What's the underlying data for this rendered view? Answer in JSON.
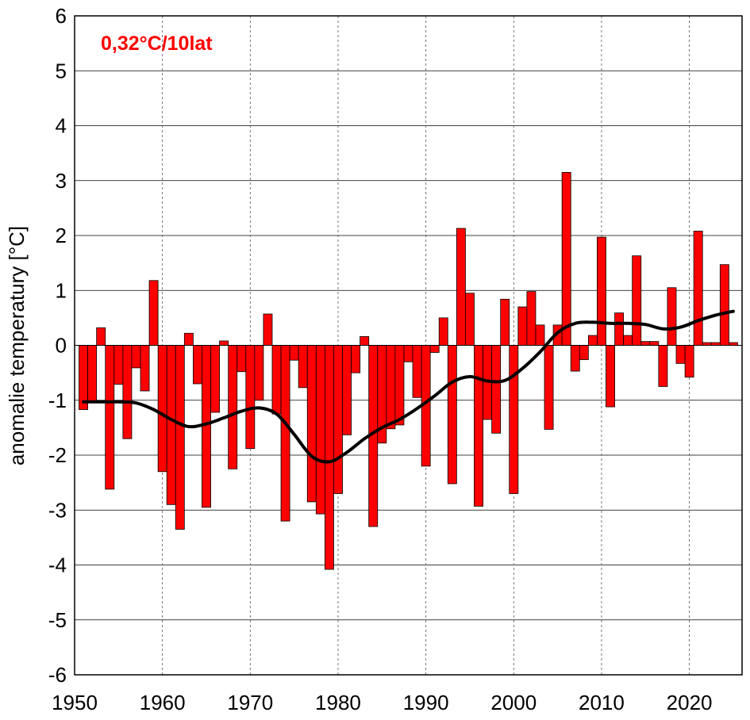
{
  "chart_data": {
    "type": "bar",
    "title": "",
    "xlabel": "",
    "ylabel": "anomalie temperatury [°C]",
    "annotation": "0,32°C/10lat",
    "xlim": [
      1950,
      2026
    ],
    "ylim": [
      -6,
      6
    ],
    "xticks": [
      1950,
      1960,
      1970,
      1980,
      1990,
      2000,
      2010,
      2020
    ],
    "yticks": [
      -6,
      -5,
      -4,
      -3,
      -2,
      -1,
      0,
      1,
      2,
      3,
      4,
      5,
      6
    ],
    "grid": {
      "horizontal": "solid",
      "vertical": "dashed"
    },
    "legend": "none",
    "colors": {
      "bars": "#ff0000",
      "bar_edge": "#000000",
      "smooth": "#000000",
      "annotation": "#ff0000"
    },
    "series": [
      {
        "type": "bar",
        "x": [
          1951,
          1952,
          1953,
          1954,
          1955,
          1956,
          1957,
          1958,
          1959,
          1960,
          1961,
          1962,
          1963,
          1964,
          1965,
          1966,
          1967,
          1968,
          1969,
          1970,
          1971,
          1972,
          1973,
          1974,
          1975,
          1976,
          1977,
          1978,
          1979,
          1980,
          1981,
          1982,
          1983,
          1984,
          1985,
          1986,
          1987,
          1988,
          1989,
          1990,
          1991,
          1992,
          1993,
          1994,
          1995,
          1996,
          1997,
          1998,
          1999,
          2000,
          2001,
          2002,
          2003,
          2004,
          2005,
          2006,
          2007,
          2008,
          2009,
          2010,
          2011,
          2012,
          2013,
          2014,
          2015,
          2016,
          2017,
          2018,
          2019,
          2020,
          2021,
          2022,
          2023,
          2024,
          2025
        ],
        "values": [
          -1.17,
          -1.02,
          0.32,
          -2.62,
          -0.71,
          -1.7,
          -0.41,
          -0.83,
          1.18,
          -2.3,
          -2.9,
          -3.35,
          0.22,
          -0.7,
          -2.95,
          -1.22,
          0.08,
          -2.25,
          -0.48,
          -1.88,
          -1.0,
          0.57,
          -1.25,
          -3.2,
          -0.27,
          -0.77,
          -2.85,
          -3.07,
          -4.08,
          -2.7,
          -1.63,
          -0.5,
          0.16,
          -3.3,
          -1.78,
          -1.52,
          -1.45,
          -0.3,
          -0.95,
          -2.2,
          -0.13,
          0.5,
          -2.52,
          2.13,
          0.95,
          -2.93,
          -1.35,
          -1.6,
          0.84,
          -2.7,
          0.7,
          0.98,
          0.37,
          -1.53,
          0.37,
          3.15,
          -0.47,
          -0.26,
          0.18,
          1.97,
          -1.12,
          0.59,
          0.18,
          1.63,
          0.07,
          0.07,
          -0.75,
          1.05,
          -0.33,
          -0.58,
          2.08,
          0.05,
          0.05,
          1.47,
          0.05
        ]
      },
      {
        "type": "line",
        "name": "",
        "x": [
          1951,
          1953,
          1955,
          1957,
          1959,
          1961,
          1963,
          1965,
          1967,
          1969,
          1971,
          1973,
          1975,
          1977,
          1979,
          1981,
          1983,
          1985,
          1987,
          1989,
          1991,
          1993,
          1995,
          1997,
          1999,
          2001,
          2003,
          2005,
          2007,
          2009,
          2011,
          2013,
          2015,
          2017,
          2019,
          2021,
          2023,
          2025
        ],
        "values": [
          -1.03,
          -1.03,
          -1.03,
          -1.05,
          -1.17,
          -1.35,
          -1.48,
          -1.43,
          -1.32,
          -1.2,
          -1.14,
          -1.25,
          -1.62,
          -2.02,
          -2.12,
          -1.95,
          -1.7,
          -1.5,
          -1.35,
          -1.15,
          -0.92,
          -0.67,
          -0.57,
          -0.65,
          -0.64,
          -0.42,
          -0.12,
          0.23,
          0.4,
          0.42,
          0.4,
          0.4,
          0.38,
          0.3,
          0.33,
          0.45,
          0.55,
          0.62
        ]
      }
    ]
  }
}
